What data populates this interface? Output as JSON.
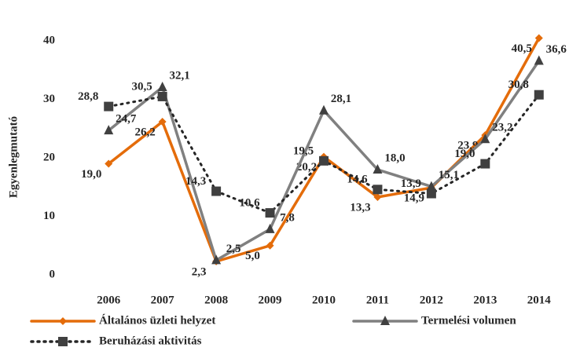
{
  "chart_data": {
    "type": "line",
    "y_label": "Egyenlegmutató",
    "categories": [
      "2006",
      "2007",
      "2008",
      "2009",
      "2010",
      "2011",
      "2012",
      "2013",
      "2014"
    ],
    "series": [
      {
        "name": "Általános üzleti helyzet",
        "color": "#e46c0a",
        "marker": "diamond",
        "dash": "solid",
        "values": [
          19.0,
          26.2,
          2.3,
          5.0,
          20.2,
          13.3,
          14.9,
          23.9,
          40.5
        ],
        "value_labels": [
          "19,0",
          "26,2",
          "2,3",
          "5,0",
          "20,2",
          "13,3",
          "14,9",
          "23,9",
          "40,5"
        ]
      },
      {
        "name": "Termelési volumen",
        "color": "#808080",
        "marker": "triangle",
        "dash": "solid",
        "values": [
          24.7,
          32.1,
          2.5,
          7.8,
          28.1,
          18.0,
          15.1,
          23.2,
          36.6
        ],
        "value_labels": [
          "24,7",
          "32,1",
          "2,5",
          "7,8",
          "28,1",
          "18,0",
          "15,1",
          "23,2",
          "36,6"
        ]
      },
      {
        "name": "Beruházási aktivitás",
        "color": "#262626",
        "marker": "square",
        "dash": "dotted",
        "values": [
          28.8,
          30.5,
          14.3,
          10.6,
          19.5,
          14.6,
          13.9,
          19.0,
          30.8
        ],
        "value_labels": [
          "28,8",
          "30,5",
          "14,3",
          "10,6",
          "19,5",
          "14,6",
          "13,9",
          "19,0",
          "30,8"
        ]
      }
    ],
    "ylim": [
      0,
      45
    ],
    "yticks": [
      0,
      10,
      20,
      30,
      40
    ],
    "grid": false,
    "legend": "bottom"
  }
}
